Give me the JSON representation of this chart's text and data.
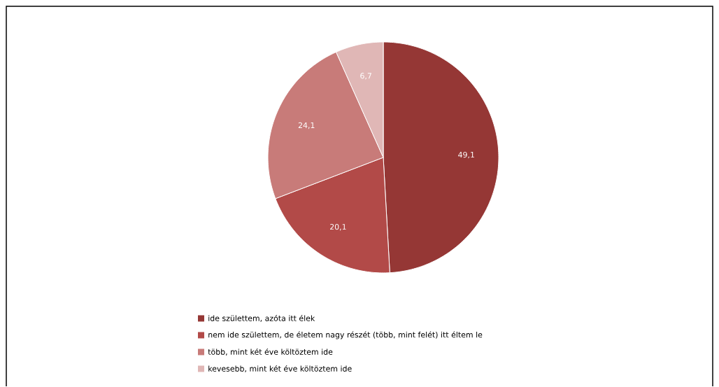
{
  "chart_data": {
    "type": "pie",
    "categories": [
      "ide születtem, azóta itt élek",
      "nem ide születtem, de életem nagy részét (több, mint felét) itt éltem le",
      "több, mint két éve költöztem ide",
      "kevesebb, mint két éve költöztem ide"
    ],
    "values": [
      49.1,
      20.1,
      24.1,
      6.7
    ],
    "colors": [
      "#953735",
      "#b24a48",
      "#c87b79",
      "#e0b7b6"
    ],
    "value_labels": [
      "49,1",
      "20,1",
      "24,1",
      "6,7"
    ],
    "legend": "bottom"
  }
}
